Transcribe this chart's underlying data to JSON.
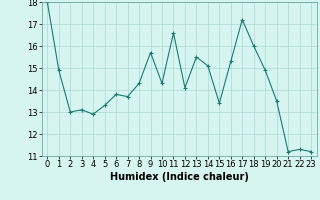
{
  "x": [
    0,
    1,
    2,
    3,
    4,
    5,
    6,
    7,
    8,
    9,
    10,
    11,
    12,
    13,
    14,
    15,
    16,
    17,
    18,
    19,
    20,
    21,
    22,
    23
  ],
  "y": [
    18.0,
    14.9,
    13.0,
    13.1,
    12.9,
    13.3,
    13.8,
    13.7,
    14.3,
    15.7,
    14.3,
    16.6,
    14.1,
    15.5,
    15.1,
    13.4,
    15.3,
    17.2,
    16.0,
    14.9,
    13.5,
    11.2,
    11.3,
    11.2
  ],
  "title": "",
  "xlabel": "Humidex (Indice chaleur)",
  "ylabel": "",
  "ylim": [
    11,
    18
  ],
  "xlim": [
    -0.5,
    23.5
  ],
  "yticks": [
    11,
    12,
    13,
    14,
    15,
    16,
    17,
    18
  ],
  "xticks": [
    0,
    1,
    2,
    3,
    4,
    5,
    6,
    7,
    8,
    9,
    10,
    11,
    12,
    13,
    14,
    15,
    16,
    17,
    18,
    19,
    20,
    21,
    22,
    23
  ],
  "line_color": "#1a7a6e",
  "marker": "+",
  "markersize": 3,
  "bg_color": "#d6f5f0",
  "grid_color": "#aad8d3",
  "tick_fontsize": 6.0,
  "xlabel_fontsize": 7.0,
  "linewidth": 0.8
}
